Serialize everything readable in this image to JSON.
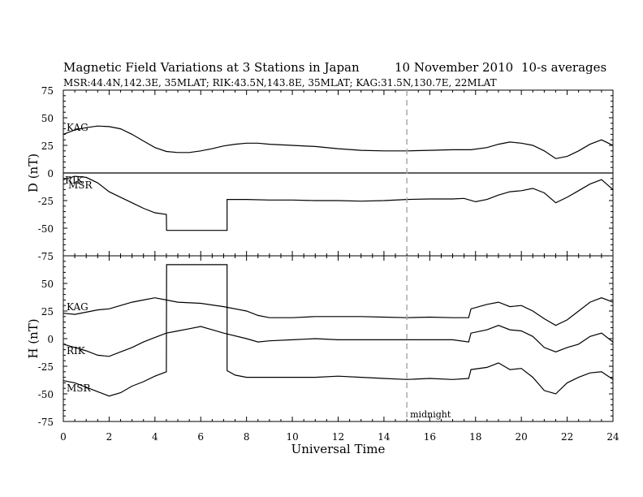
{
  "header": {
    "title": "Magnetic Field Variations at 3 Stations in Japan",
    "date": "10 November 2010",
    "averaging": "10-s averages",
    "stations": "MSR:44.4N,142.3E, 35MLAT;  RIK:43.5N,143.8E, 35MLAT;  KAG:31.5N,130.7E, 22MLAT"
  },
  "annotations": {
    "midnight": "midnight"
  },
  "colors": {
    "trace": "#000000",
    "midnight_line": "#aaaaaa"
  },
  "chart_data": [
    {
      "type": "line",
      "ylabel": "D (nT)",
      "xlim": [
        0,
        24
      ],
      "ylim": [
        -75,
        75
      ],
      "yticks": [
        "75",
        "50",
        "25",
        "0",
        "-25",
        "-50",
        "-75"
      ],
      "zero_line": true,
      "series": [
        {
          "name": "KAG",
          "points": [
            [
              0,
              35
            ],
            [
              0.5,
              39
            ],
            [
              1,
              41
            ],
            [
              1.5,
              42.5
            ],
            [
              2,
              42
            ],
            [
              2.5,
              40
            ],
            [
              3,
              35
            ],
            [
              3.5,
              29
            ],
            [
              4,
              23
            ],
            [
              4.5,
              19.5
            ],
            [
              5,
              18.5
            ],
            [
              5.5,
              18.5
            ],
            [
              6,
              20
            ],
            [
              6.5,
              22
            ],
            [
              7,
              24.5
            ],
            [
              7.5,
              26
            ],
            [
              8,
              27
            ],
            [
              8.5,
              27
            ],
            [
              9,
              26
            ],
            [
              10,
              25
            ],
            [
              11,
              24
            ],
            [
              12,
              22
            ],
            [
              13,
              20.5
            ],
            [
              14,
              20
            ],
            [
              15,
              20
            ],
            [
              16,
              20.5
            ],
            [
              17,
              21
            ],
            [
              17.8,
              21
            ],
            [
              18.5,
              23
            ],
            [
              19,
              26
            ],
            [
              19.5,
              28
            ],
            [
              20,
              27
            ],
            [
              20.5,
              25
            ],
            [
              21,
              20
            ],
            [
              21.5,
              13
            ],
            [
              22,
              15
            ],
            [
              22.5,
              20
            ],
            [
              23,
              26
            ],
            [
              23.5,
              30
            ],
            [
              23.8,
              27
            ],
            [
              24,
              25
            ]
          ]
        },
        {
          "name": "RIK",
          "points": [
            [
              0,
              -6
            ],
            [
              0.5,
              -3
            ],
            [
              1,
              -4
            ],
            [
              1.5,
              -9
            ],
            [
              2,
              -17
            ],
            [
              2.5,
              -22
            ],
            [
              3,
              -27
            ],
            [
              3.5,
              -32
            ],
            [
              4,
              -36
            ],
            [
              4.5,
              -37.5
            ],
            [
              4.51,
              -52
            ],
            [
              7.15,
              -52
            ],
            [
              7.15,
              -24
            ],
            [
              8,
              -24
            ],
            [
              9,
              -24.5
            ],
            [
              10,
              -24.5
            ],
            [
              11,
              -25
            ],
            [
              12,
              -25
            ],
            [
              13,
              -25.5
            ],
            [
              14,
              -25
            ],
            [
              15,
              -24
            ],
            [
              16,
              -23.5
            ],
            [
              17,
              -23.5
            ],
            [
              17.5,
              -23
            ],
            [
              18,
              -26
            ],
            [
              18.5,
              -24
            ],
            [
              19,
              -20
            ],
            [
              19.5,
              -17
            ],
            [
              20,
              -16
            ],
            [
              20.5,
              -14
            ],
            [
              21,
              -18
            ],
            [
              21.5,
              -27
            ],
            [
              22,
              -22
            ],
            [
              22.5,
              -16
            ],
            [
              23,
              -10
            ],
            [
              23.5,
              -6
            ],
            [
              24,
              -15
            ]
          ]
        },
        {
          "name": "MSR",
          "points": []
        }
      ]
    },
    {
      "type": "line",
      "xlabel": "Universal Time",
      "ylabel": "H (nT)",
      "xlim": [
        0,
        24
      ],
      "ylim": [
        -75,
        75
      ],
      "yticks": [
        "75",
        "50",
        "25",
        "0",
        "-25",
        "-50",
        "-75"
      ],
      "xticks": [
        "0",
        "2",
        "4",
        "6",
        "8",
        "10",
        "12",
        "14",
        "16",
        "18",
        "20",
        "22",
        "24"
      ],
      "series": [
        {
          "name": "KAG",
          "points": [
            [
              0,
              23
            ],
            [
              0.5,
              22
            ],
            [
              1,
              24
            ],
            [
              1.5,
              26
            ],
            [
              2,
              27
            ],
            [
              2.5,
              30
            ],
            [
              3,
              33
            ],
            [
              3.5,
              35
            ],
            [
              4,
              37
            ],
            [
              4.5,
              35
            ],
            [
              5,
              33
            ],
            [
              6,
              32
            ],
            [
              7,
              29
            ],
            [
              8,
              25
            ],
            [
              8.5,
              21
            ],
            [
              9,
              19
            ],
            [
              10,
              19
            ],
            [
              11,
              20
            ],
            [
              12,
              20
            ],
            [
              13,
              20
            ],
            [
              14,
              19.5
            ],
            [
              15,
              19
            ],
            [
              16,
              19.5
            ],
            [
              17,
              19
            ],
            [
              17.7,
              19
            ],
            [
              17.8,
              27
            ],
            [
              18.5,
              31
            ],
            [
              19,
              33
            ],
            [
              19.5,
              29
            ],
            [
              20,
              30
            ],
            [
              20.5,
              25
            ],
            [
              21,
              18
            ],
            [
              21.5,
              12
            ],
            [
              22,
              17
            ],
            [
              22.5,
              25
            ],
            [
              23,
              33
            ],
            [
              23.5,
              37
            ],
            [
              24,
              33
            ]
          ]
        },
        {
          "name": "RIK",
          "points": [
            [
              0,
              -5
            ],
            [
              0.5,
              -8
            ],
            [
              1,
              -11
            ],
            [
              1.5,
              -15
            ],
            [
              2,
              -16
            ],
            [
              2.5,
              -12
            ],
            [
              3,
              -8
            ],
            [
              3.5,
              -3
            ],
            [
              4,
              1
            ],
            [
              4.5,
              5
            ],
            [
              5,
              7
            ],
            [
              5.5,
              9
            ],
            [
              6,
              11
            ],
            [
              6.5,
              8
            ],
            [
              7,
              5
            ],
            [
              8,
              0
            ],
            [
              8.5,
              -3
            ],
            [
              9,
              -2
            ],
            [
              10,
              -1
            ],
            [
              11,
              0
            ],
            [
              12,
              -1
            ],
            [
              13,
              -1
            ],
            [
              14,
              -1
            ],
            [
              15,
              -1
            ],
            [
              16,
              -1
            ],
            [
              17,
              -1
            ],
            [
              17.7,
              -3
            ],
            [
              17.8,
              5
            ],
            [
              18.5,
              8
            ],
            [
              19,
              12
            ],
            [
              19.5,
              8
            ],
            [
              20,
              7
            ],
            [
              20.5,
              2
            ],
            [
              21,
              -8
            ],
            [
              21.5,
              -12
            ],
            [
              22,
              -8
            ],
            [
              22.5,
              -5
            ],
            [
              23,
              2
            ],
            [
              23.5,
              5
            ],
            [
              24,
              -3
            ]
          ]
        },
        {
          "name": "MSR",
          "points": [
            [
              0,
              -38
            ],
            [
              0.5,
              -40
            ],
            [
              1,
              -44
            ],
            [
              1.5,
              -48
            ],
            [
              2,
              -52
            ],
            [
              2.5,
              -49
            ],
            [
              3,
              -43
            ],
            [
              3.5,
              -39
            ],
            [
              4,
              -34
            ],
            [
              4.5,
              -30
            ],
            [
              4.51,
              67
            ],
            [
              7.15,
              67
            ],
            [
              7.15,
              -29
            ],
            [
              7.5,
              -33
            ],
            [
              8,
              -35
            ],
            [
              9,
              -35
            ],
            [
              10,
              -35
            ],
            [
              11,
              -35
            ],
            [
              12,
              -34
            ],
            [
              13,
              -35
            ],
            [
              14,
              -36
            ],
            [
              15,
              -37
            ],
            [
              16,
              -36
            ],
            [
              17,
              -37
            ],
            [
              17.7,
              -36
            ],
            [
              17.8,
              -28
            ],
            [
              18.5,
              -26
            ],
            [
              19,
              -22
            ],
            [
              19.5,
              -28
            ],
            [
              20,
              -27
            ],
            [
              20.5,
              -35
            ],
            [
              21,
              -47
            ],
            [
              21.5,
              -50
            ],
            [
              22,
              -40
            ],
            [
              22.5,
              -35
            ],
            [
              23,
              -31
            ],
            [
              23.5,
              -30
            ],
            [
              24,
              -37
            ]
          ]
        }
      ]
    }
  ]
}
